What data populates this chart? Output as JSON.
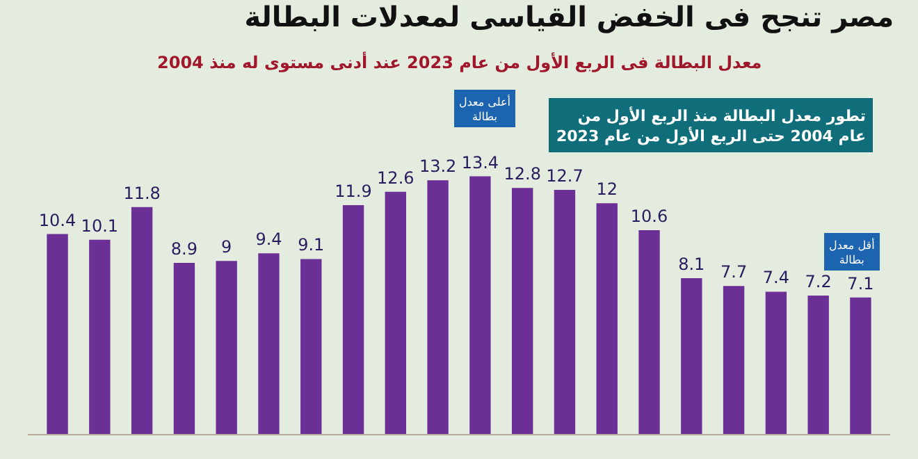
{
  "chart_data": {
    "type": "bar",
    "title": "مصر تنجح فى الخفض القياسى لمعدلات البطالة",
    "subtitle": "معدل البطالة فى الربع الأول من عام 2023 عند أدنى مستوى له منذ 2004",
    "categories": [
      null,
      null,
      null,
      null,
      null,
      null,
      null,
      null,
      null,
      null,
      null,
      null,
      null,
      null,
      null,
      null,
      null,
      null,
      null,
      null
    ],
    "values": [
      10.4,
      10.1,
      11.8,
      8.9,
      9,
      9.4,
      9.1,
      11.9,
      12.6,
      13.2,
      13.4,
      12.8,
      12.7,
      12,
      10.6,
      8.1,
      7.7,
      7.4,
      7.2,
      7.1
    ],
    "color": "#6b2f96",
    "data_labels": true,
    "annotations": [
      "تطور معدل البطالة منذ الربع الأول من عام 2004 حتى الربع الأول من عام 2023",
      "أعلى معدل بطالة",
      "أقل معدل بطالة"
    ],
    "legend": false
  }
}
